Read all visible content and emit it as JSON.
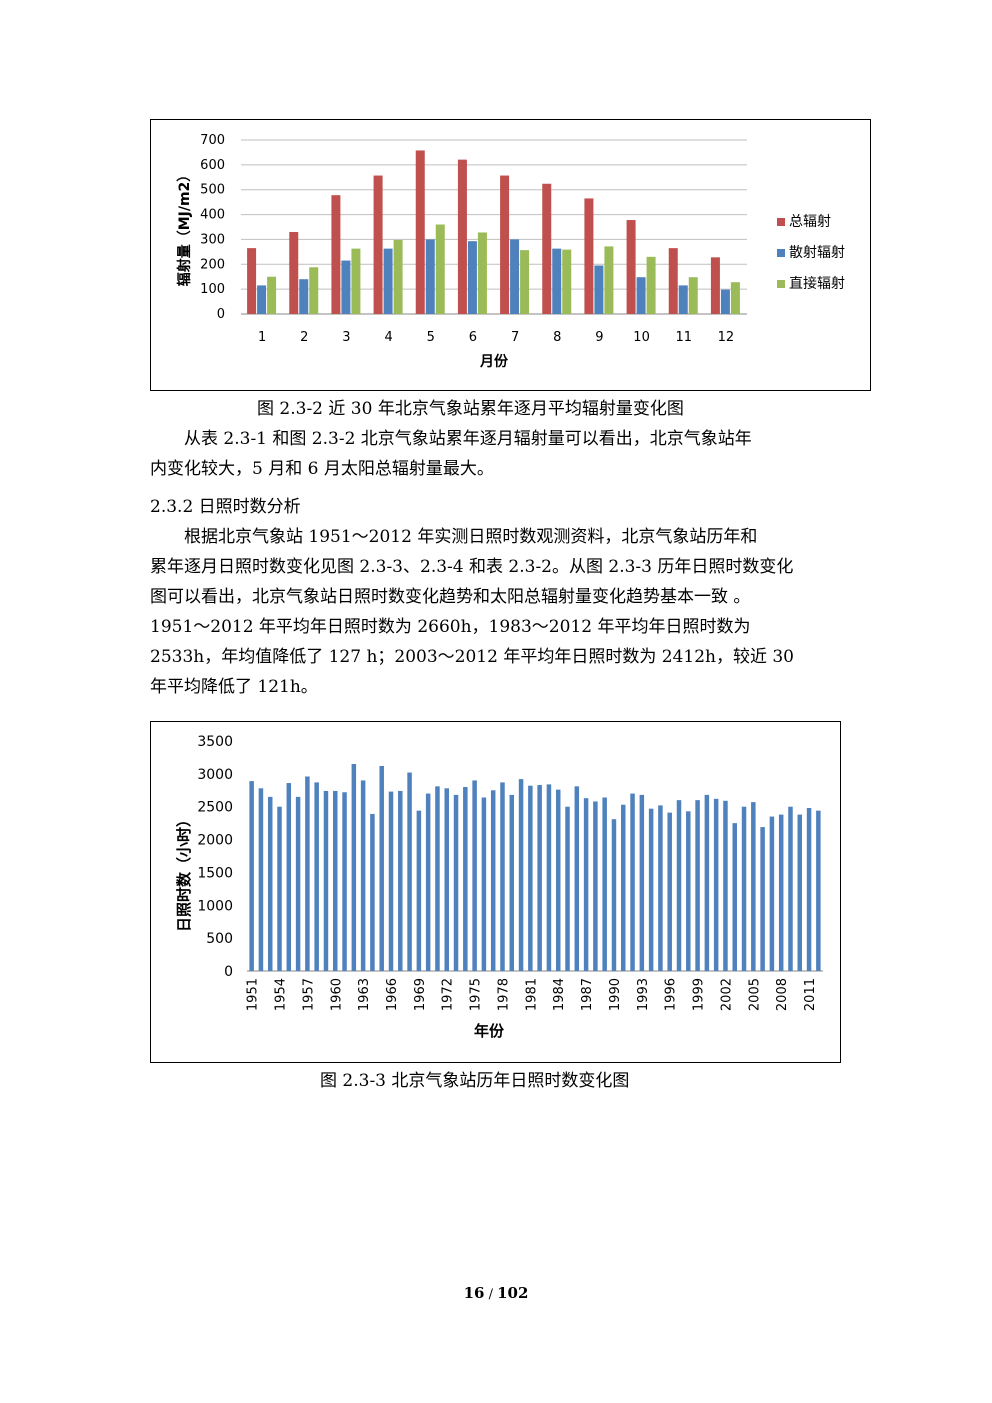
{
  "figure1": {
    "caption": "图 2.3-2  近 30 年北京气象站累年逐月平均辐射量变化图",
    "chart_data": {
      "type": "bar",
      "categories": [
        "1",
        "2",
        "3",
        "4",
        "5",
        "6",
        "7",
        "8",
        "9",
        "10",
        "11",
        "12"
      ],
      "series": [
        {
          "name": "总辐射",
          "color": "#C0504D",
          "values": [
            265,
            330,
            478,
            557,
            658,
            621,
            557,
            524,
            465,
            378,
            265,
            228
          ]
        },
        {
          "name": "散射辐射",
          "color": "#4F81BD",
          "values": [
            115,
            140,
            215,
            263,
            300,
            293,
            300,
            263,
            195,
            148,
            115,
            98
          ]
        },
        {
          "name": "直接辐射",
          "color": "#9BBB59",
          "values": [
            150,
            188,
            263,
            298,
            360,
            328,
            257,
            259,
            272,
            230,
            148,
            128
          ]
        }
      ],
      "yticks": [
        "0",
        "100",
        "200",
        "300",
        "400",
        "500",
        "600",
        "700"
      ],
      "ylim": [
        0,
        700
      ],
      "xlabel": "月份",
      "ylabel": "辐射量（MJ/m2）",
      "legend_position": "right",
      "grid": true
    }
  },
  "paragraph1": {
    "line1": "从表 2.3-1 和图 2.3-2 北京气象站累年逐月辐射量可以看出，北京气象站年",
    "line2": "内变化较大，5 月和 6 月太阳总辐射量最大。"
  },
  "section_heading": "2.3.2 日照时数分析",
  "paragraph2": {
    "line1": "根据北京气象站 1951～2012 年实测日照时数观测资料，北京气象站历年和",
    "line2": "累年逐月日照时数变化见图 2.3-3、2.3-4 和表 2.3-2。从图 2.3-3 历年日照时数变化",
    "line3": "图可以看出，北京气象站日照时数变化趋势和太阳总辐射量变化趋势基本一致 。",
    "line4": "1951～2012 年平均年日照时数为 2660h，1983～2012 年平均年日照时数为",
    "line5": "2533h，年均值降低了 127 h；2003～2012 年平均年日照时数为 2412h，较近 30",
    "line6": "年平均降低了 121h。"
  },
  "figure2": {
    "caption": "图 2.3-3  北京气象站历年日照时数变化图",
    "chart_data": {
      "type": "bar",
      "x": [
        1951,
        1952,
        1953,
        1954,
        1955,
        1956,
        1957,
        1958,
        1959,
        1960,
        1961,
        1962,
        1963,
        1964,
        1965,
        1966,
        1967,
        1968,
        1969,
        1970,
        1971,
        1972,
        1973,
        1974,
        1975,
        1976,
        1977,
        1978,
        1979,
        1980,
        1981,
        1982,
        1983,
        1984,
        1985,
        1986,
        1987,
        1988,
        1989,
        1990,
        1991,
        1992,
        1993,
        1994,
        1995,
        1996,
        1997,
        1998,
        1999,
        2000,
        2001,
        2002,
        2003,
        2004,
        2005,
        2006,
        2007,
        2008,
        2009,
        2010,
        2011,
        2012
      ],
      "xtick_labels": [
        "1951",
        "1954",
        "1957",
        "1960",
        "1963",
        "1966",
        "1969",
        "1972",
        "1975",
        "1978",
        "1981",
        "1984",
        "1987",
        "1990",
        "1993",
        "1996",
        "1999",
        "2002",
        "2005",
        "2008",
        "2011"
      ],
      "series": [
        {
          "color": "#4F81BD",
          "values": [
            2890,
            2780,
            2650,
            2500,
            2860,
            2650,
            2960,
            2870,
            2740,
            2740,
            2720,
            3150,
            2900,
            2390,
            3120,
            2730,
            2740,
            3020,
            2440,
            2700,
            2810,
            2780,
            2680,
            2800,
            2900,
            2640,
            2750,
            2870,
            2680,
            2920,
            2820,
            2830,
            2840,
            2760,
            2500,
            2810,
            2630,
            2580,
            2640,
            2310,
            2530,
            2700,
            2680,
            2470,
            2520,
            2410,
            2600,
            2430,
            2600,
            2680,
            2620,
            2590,
            2250,
            2500,
            2570,
            2190,
            2350,
            2380,
            2500,
            2380,
            2480,
            2440
          ]
        }
      ],
      "yticks": [
        "0",
        "500",
        "1000",
        "1500",
        "2000",
        "2500",
        "3000",
        "3500"
      ],
      "ylim": [
        0,
        3500
      ],
      "xlabel": "年份",
      "ylabel": "日照时数（小时）",
      "grid": false
    }
  },
  "page_number": {
    "current": "16",
    "separator": " / ",
    "total": "102"
  }
}
